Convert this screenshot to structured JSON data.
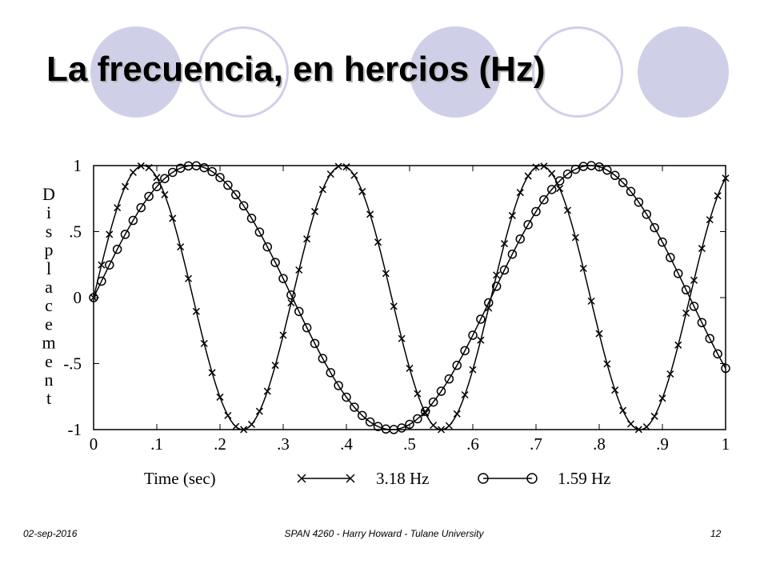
{
  "slide": {
    "title": "La frecuencia, en hercios (Hz)",
    "footer_date": "02-sep-2016",
    "footer_center": "SPAN 4260 - Harry Howard - Tulane University",
    "page_number": "12",
    "decor_color": "#cfd0e8"
  },
  "chart_data": {
    "type": "line",
    "title": "",
    "xlabel": "Time (sec)",
    "ylabel": "Displacement",
    "xlim": [
      0,
      1
    ],
    "ylim": [
      -1,
      1
    ],
    "x_ticks": [
      "0",
      ".1",
      ".2",
      ".3",
      ".4",
      ".5",
      ".6",
      ".7",
      ".8",
      ".9",
      "1"
    ],
    "y_ticks": [
      "1",
      ".5",
      "0",
      "-.5",
      "-1"
    ],
    "grid": false,
    "legend_position": "bottom-center",
    "series": [
      {
        "name": "3.18 Hz",
        "function": "sine",
        "frequency_hz": 3.18,
        "amplitude": 1,
        "marker": "x",
        "color": "#000000",
        "samples": 81
      },
      {
        "name": "1.59 Hz",
        "function": "sine",
        "frequency_hz": 1.59,
        "amplitude": 1,
        "marker": "o",
        "color": "#000000",
        "samples": 81
      }
    ]
  }
}
